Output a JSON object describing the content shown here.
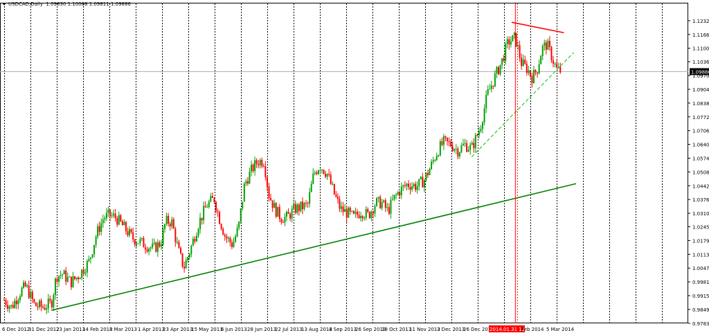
{
  "header": {
    "symbol": "USDCAD,Daily",
    "ohlc": "1.09830 1.10068 1.09811 1.09886"
  },
  "colors": {
    "bull": "#00a000",
    "bear": "#ff0000",
    "trendline_main": "#008000",
    "trendline_dashed": "#00c000",
    "resistance": "#ff0000",
    "vline_marker": "#ff0000",
    "grid": "#000000"
  },
  "chart_data": {
    "type": "candlestick",
    "title": "",
    "xlabel": "",
    "ylabel": "",
    "ylim": [
      0.9783,
      1.12853
    ],
    "y_ticks": [
      "1.12325",
      "1.11665",
      "1.11005",
      "1.10360",
      "1.09700",
      "1.09040",
      "1.08380",
      "1.07720",
      "1.07060",
      "1.06400",
      "1.05740",
      "1.05080",
      "1.04420",
      "1.03760",
      "1.03100",
      "1.02455",
      "1.01795",
      "1.01135",
      "1.00475",
      "0.99815",
      "0.99155",
      "0.98495",
      "0.97830"
    ],
    "x_ticks": [
      "6 Dec 2012",
      "31 Dec 2012",
      "23 Jan 2013",
      "14 Feb 2013",
      "8 Mar 2013",
      "1 Apr 2013",
      "23 Apr 2013",
      "15 May 2013",
      "6 Jun 2013",
      "28 Jun 2013",
      "22 Jul 2013",
      "13 Aug 2013",
      "4 Sep 2013",
      "26 Sep 2013",
      "18 Oct 2013",
      "11 Nov 2013",
      "3 Dec 2013",
      "26 Dec 2013",
      "2014.01.31 12:00",
      "Feb 2014",
      "5 Mar 2014"
    ],
    "current_price": "1.09886",
    "highlight_date": "2014.01.31 12:00",
    "close_path": [
      [
        "6 Dec 2012",
        0.9895
      ],
      [
        "12 Dec 2012",
        0.986
      ],
      [
        "20 Dec 2012",
        0.994
      ],
      [
        "24 Dec 2012",
        0.996
      ],
      [
        "31 Dec 2012",
        0.987
      ],
      [
        "7 Jan 2013",
        0.986
      ],
      [
        "14 Jan 2013",
        0.988
      ],
      [
        "18 Jan 2013",
        1.001
      ],
      [
        "23 Jan 2013",
        1.002
      ],
      [
        "30 Jan 2013",
        0.998
      ],
      [
        "5 Feb 2013",
        1.001
      ],
      [
        "14 Feb 2013",
        1.008
      ],
      [
        "20 Feb 2013",
        1.021
      ],
      [
        "26 Feb 2013",
        1.029
      ],
      [
        "3 Mar 2013",
        1.03
      ],
      [
        "8 Mar 2013",
        1.029
      ],
      [
        "15 Mar 2013",
        1.024
      ],
      [
        "22 Mar 2013",
        1.019
      ],
      [
        "1 Apr 2013",
        1.016
      ],
      [
        "8 Apr 2013",
        1.014
      ],
      [
        "14 Apr 2013",
        1.017
      ],
      [
        "18 Apr 2013",
        1.027
      ],
      [
        "23 Apr 2013",
        1.027
      ],
      [
        "29 Apr 2013",
        1.012
      ],
      [
        "3 May 2013",
        1.005
      ],
      [
        "8 May 2013",
        1.013
      ],
      [
        "15 May 2013",
        1.026
      ],
      [
        "22 May 2013",
        1.035
      ],
      [
        "28 May 2013",
        1.038
      ],
      [
        "1 Jun 2013",
        1.029
      ],
      [
        "6 Jun 2013",
        1.02
      ],
      [
        "12 Jun 2013",
        1.016
      ],
      [
        "17 Jun 2013",
        1.024
      ],
      [
        "22 Jun 2013",
        1.045
      ],
      [
        "28 Jun 2013",
        1.052
      ],
      [
        "3 Jul 2013",
        1.056
      ],
      [
        "8 Jul 2013",
        1.056
      ],
      [
        "12 Jul 2013",
        1.04
      ],
      [
        "17 Jul 2013",
        1.033
      ],
      [
        "22 Jul 2013",
        1.029
      ],
      [
        "27 Jul 2013",
        1.029
      ],
      [
        "2 Aug 2013",
        1.033
      ],
      [
        "8 Aug 2013",
        1.034
      ],
      [
        "13 Aug 2013",
        1.035
      ],
      [
        "18 Aug 2013",
        1.05
      ],
      [
        "23 Aug 2013",
        1.054
      ],
      [
        "29 Aug 2013",
        1.05
      ],
      [
        "4 Sep 2013",
        1.04
      ],
      [
        "9 Sep 2013",
        1.033
      ],
      [
        "15 Sep 2013",
        1.031
      ],
      [
        "20 Sep 2013",
        1.029
      ],
      [
        "26 Sep 2013",
        1.032
      ],
      [
        "2 Oct 2013",
        1.03
      ],
      [
        "8 Oct 2013",
        1.036
      ],
      [
        "13 Oct 2013",
        1.036
      ],
      [
        "18 Oct 2013",
        1.032
      ],
      [
        "23 Oct 2013",
        1.038
      ],
      [
        "28 Oct 2013",
        1.042
      ],
      [
        "3 Nov 2013",
        1.045
      ],
      [
        "11 Nov 2013",
        1.044
      ],
      [
        "17 Nov 2013",
        1.047
      ],
      [
        "22 Nov 2013",
        1.053
      ],
      [
        "28 Nov 2013",
        1.061
      ],
      [
        "3 Dec 2013",
        1.065
      ],
      [
        "9 Dec 2013",
        1.064
      ],
      [
        "15 Dec 2013",
        1.061
      ],
      [
        "20 Dec 2013",
        1.064
      ],
      [
        "26 Dec 2013",
        1.062
      ],
      [
        "2 Jan 2014",
        1.072
      ],
      [
        "8 Jan 2014",
        1.088
      ],
      [
        "14 Jan 2014",
        1.096
      ],
      [
        "20 Jan 2014",
        1.104
      ],
      [
        "25 Jan 2014",
        1.113
      ],
      [
        "31 Jan 2014",
        1.115
      ],
      [
        "5 Feb 2014",
        1.103
      ],
      [
        "10 Feb 2014",
        1.1
      ],
      [
        "14 Feb 2014",
        1.096
      ],
      [
        "18 Feb 2014",
        1.1
      ],
      [
        "22 Feb 2014",
        1.11
      ],
      [
        "26 Feb 2014",
        1.112
      ],
      [
        "2 Mar 2014",
        1.106
      ],
      [
        "6 Mar 2014",
        1.1
      ],
      [
        "10 Mar 2014",
        1.0989
      ]
    ],
    "annotations": [
      {
        "type": "trendline",
        "style": "solid",
        "color": "#008000",
        "from": [
          "14 Jan 2013",
          0.9845
        ],
        "to": [
          "22 Mar 2014",
          1.0452
        ]
      },
      {
        "type": "trendline",
        "style": "dashed",
        "color": "#00c000",
        "from": [
          "26 Dec 2013",
          1.058
        ],
        "to": [
          "20 Mar 2014",
          1.108
        ]
      },
      {
        "type": "trendline",
        "style": "solid",
        "color": "#ff0000",
        "from": [
          "28 Jan 2014",
          1.1225
        ],
        "to": [
          "12 Mar 2014",
          1.1175
        ]
      },
      {
        "type": "vertical",
        "color": "#ff0000",
        "at": "31 Jan 2014"
      }
    ]
  }
}
